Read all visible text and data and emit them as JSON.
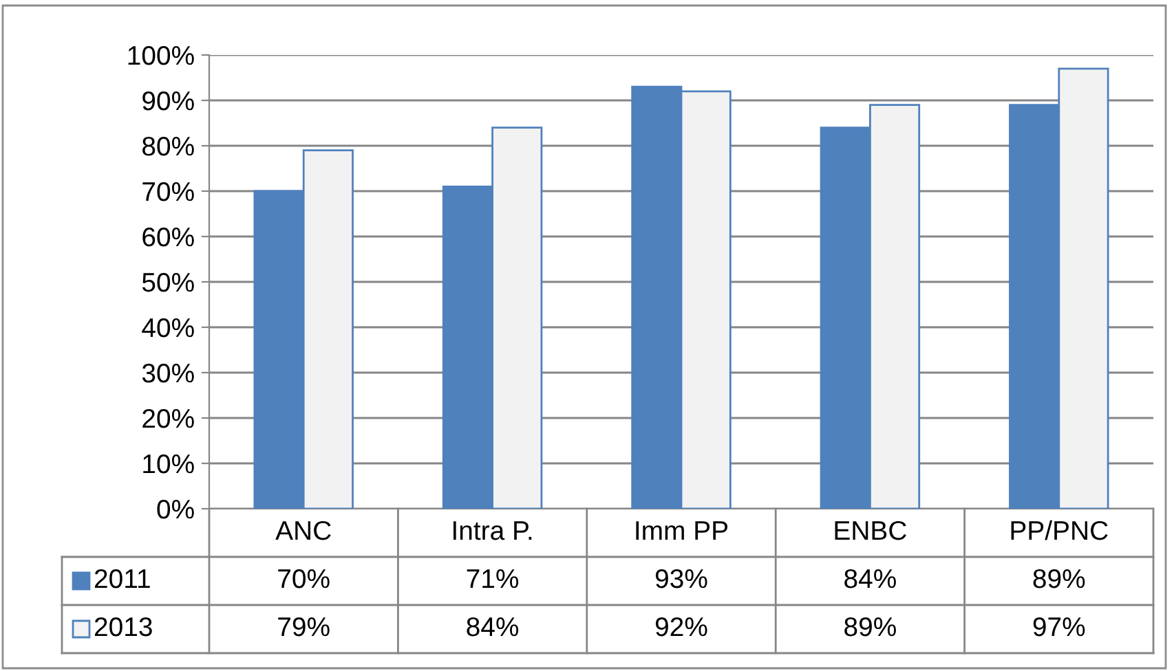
{
  "chart_data": {
    "type": "bar",
    "categories": [
      "ANC",
      "Intra P.",
      "Imm PP",
      "ENBC",
      "PP/PNC"
    ],
    "series": [
      {
        "name": "2011",
        "color": "#4f81bd",
        "values": [
          70,
          71,
          93,
          84,
          89
        ],
        "value_labels": [
          "70%",
          "71%",
          "93%",
          "84%",
          "89%"
        ]
      },
      {
        "name": "2013",
        "color": "#f2f2f2",
        "values": [
          79,
          84,
          92,
          89,
          97
        ],
        "value_labels": [
          "79%",
          "84%",
          "92%",
          "89%",
          "97%"
        ]
      }
    ],
    "ylim": [
      0,
      100
    ],
    "yticks": [
      {
        "value": 0,
        "label": "0%"
      },
      {
        "value": 10,
        "label": "10%"
      },
      {
        "value": 20,
        "label": "20%"
      },
      {
        "value": 30,
        "label": "30%"
      },
      {
        "value": 40,
        "label": "40%"
      },
      {
        "value": 50,
        "label": "50%"
      },
      {
        "value": 60,
        "label": "60%"
      },
      {
        "value": 70,
        "label": "70%"
      },
      {
        "value": 80,
        "label": "80%"
      },
      {
        "value": 90,
        "label": "90%"
      },
      {
        "value": 100,
        "label": "100%"
      }
    ],
    "grid": "y",
    "legend": "bottom"
  }
}
